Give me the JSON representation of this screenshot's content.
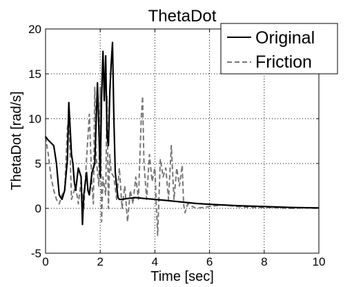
{
  "chart_data": {
    "type": "line",
    "title": "ThetaDot",
    "xlabel": "Time [sec]",
    "ylabel": "ThetaDot [rad/s]",
    "xlim": [
      0,
      10
    ],
    "ylim": [
      -5,
      20
    ],
    "xticks": [
      "0",
      "2",
      "4",
      "6",
      "8",
      "10"
    ],
    "yticks": [
      "-5",
      "0",
      "5",
      "10",
      "15",
      "20"
    ],
    "grid": true,
    "legend_position": "top-right",
    "series": [
      {
        "name": "Original",
        "color": "#000000",
        "style": "solid",
        "x": [
          0,
          0.1,
          0.2,
          0.3,
          0.4,
          0.5,
          0.6,
          0.7,
          0.8,
          0.85,
          0.9,
          0.95,
          1.0,
          1.05,
          1.1,
          1.2,
          1.3,
          1.35,
          1.4,
          1.5,
          1.55,
          1.6,
          1.7,
          1.8,
          1.9,
          1.95,
          2.0,
          2.05,
          2.1,
          2.15,
          2.2,
          2.25,
          2.3,
          2.35,
          2.4,
          2.45,
          2.5,
          2.55,
          2.6,
          2.65,
          2.7,
          2.8,
          3.0,
          3.3,
          3.6,
          4.0,
          4.5,
          5.0,
          5.5,
          6.0,
          7.0,
          8.0,
          9.0,
          10.0
        ],
        "y": [
          8,
          7.6,
          7.3,
          7.0,
          5.0,
          1.5,
          1.0,
          2.0,
          5.5,
          11.8,
          9.0,
          6.0,
          5.0,
          3.0,
          2.0,
          4.5,
          3.5,
          -1.8,
          1.5,
          4.0,
          2.0,
          1.5,
          4.0,
          5.0,
          14.0,
          9.0,
          3.5,
          12.5,
          17.5,
          12.0,
          17.0,
          8.0,
          7.0,
          13.0,
          16.0,
          18.5,
          10.0,
          4.0,
          2.5,
          1.2,
          1.0,
          1.0,
          1.1,
          1.2,
          1.1,
          1.0,
          0.85,
          0.7,
          0.55,
          0.45,
          0.3,
          0.2,
          0.1,
          0.05
        ]
      },
      {
        "name": "Friction",
        "color": "#777777",
        "style": "dashed",
        "x": [
          0,
          0.1,
          0.2,
          0.3,
          0.4,
          0.5,
          0.6,
          0.7,
          0.8,
          0.85,
          0.9,
          0.95,
          1.0,
          1.1,
          1.2,
          1.3,
          1.35,
          1.4,
          1.5,
          1.6,
          1.7,
          1.75,
          1.8,
          1.85,
          1.9,
          1.95,
          2.0,
          2.05,
          2.1,
          2.2,
          2.25,
          2.3,
          2.35,
          2.4,
          2.5,
          2.6,
          2.7,
          2.8,
          2.9,
          3.0,
          3.1,
          3.2,
          3.3,
          3.4,
          3.5,
          3.55,
          3.6,
          3.7,
          3.8,
          3.9,
          4.0,
          4.05,
          4.1,
          4.2,
          4.3,
          4.4,
          4.5,
          4.6,
          4.7,
          4.8,
          4.9,
          5.0,
          5.05,
          5.1,
          5.2,
          5.5,
          6.0,
          6.5,
          7.0,
          7.5,
          8.0,
          8.5,
          9.0,
          9.5,
          10.0
        ],
        "y": [
          8,
          6.0,
          3.5,
          2.0,
          1.0,
          0.5,
          1.5,
          2.0,
          9.0,
          10.0,
          6.0,
          1.0,
          1.5,
          2.5,
          0.5,
          3.0,
          1.0,
          0.0,
          5.5,
          10.5,
          2.5,
          0.5,
          13.5,
          6.0,
          4.0,
          2.5,
          13.5,
          -1.5,
          3.5,
          1.5,
          12.5,
          0.0,
          6.0,
          4.0,
          3.5,
          1.0,
          4.5,
          0.0,
          2.5,
          -1.5,
          2.0,
          0.5,
          3.5,
          1.0,
          10.0,
          12.5,
          5.0,
          1.0,
          6.0,
          3.0,
          4.5,
          0.5,
          -3.0,
          5.5,
          3.5,
          4.5,
          1.0,
          7.0,
          1.0,
          4.5,
          2.5,
          4.8,
          0.5,
          -0.5,
          0.5,
          0.0,
          0.2,
          0.4,
          0.2,
          0.1,
          0.1,
          0.05,
          0.0,
          0.05,
          0.0
        ]
      }
    ]
  }
}
